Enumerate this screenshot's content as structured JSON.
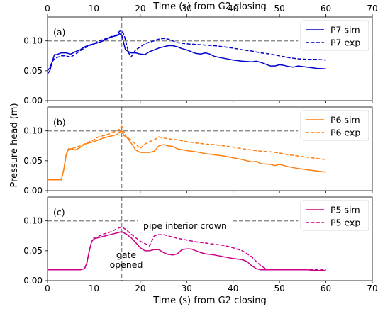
{
  "figure": {
    "top_xlabel": "Time (s) from G2 closing",
    "bottom_xlabel": "Time (s) from G2 closing",
    "ylabel": "Pressure head (m)"
  },
  "chart_data": [
    {
      "type": "line",
      "panel_label": "(a)",
      "xlim": [
        0,
        70
      ],
      "ylim": [
        0,
        0.14
      ],
      "xticks": [
        "0",
        "10",
        "20",
        "30",
        "40",
        "50",
        "60",
        "70"
      ],
      "yticks": [
        "0.00",
        "0.05",
        "0.10"
      ],
      "ytick_values": [
        0,
        0.05,
        0.1
      ],
      "ref_y": 0.1,
      "ref_x": 16,
      "legend_position": "upper right",
      "series": [
        {
          "name": "P7 sim",
          "color": "#0000cc",
          "style": "solid",
          "x": [
            0,
            0.5,
            1,
            1.5,
            2,
            3,
            4,
            5,
            6,
            7,
            8,
            9,
            10,
            11,
            12,
            13,
            14,
            15,
            15.5,
            16,
            16.4,
            16.8,
            17.5,
            18,
            19,
            20,
            21,
            22,
            23,
            24,
            25,
            26,
            27,
            28,
            29,
            30,
            31,
            32,
            33,
            34,
            35,
            36,
            38,
            40,
            42,
            44,
            45,
            46,
            47,
            48,
            49,
            50,
            51,
            52,
            53,
            54,
            56,
            58,
            60
          ],
          "y": [
            0.045,
            0.05,
            0.065,
            0.077,
            0.077,
            0.08,
            0.08,
            0.078,
            0.082,
            0.085,
            0.09,
            0.093,
            0.095,
            0.097,
            0.1,
            0.104,
            0.107,
            0.109,
            0.112,
            0.11,
            0.097,
            0.085,
            0.082,
            0.08,
            0.08,
            0.078,
            0.077,
            0.082,
            0.085,
            0.088,
            0.09,
            0.092,
            0.092,
            0.09,
            0.087,
            0.085,
            0.082,
            0.079,
            0.078,
            0.08,
            0.078,
            0.074,
            0.071,
            0.068,
            0.066,
            0.065,
            0.066,
            0.064,
            0.061,
            0.058,
            0.058,
            0.06,
            0.059,
            0.057,
            0.056,
            0.058,
            0.056,
            0.054,
            0.053
          ]
        },
        {
          "name": "P7 exp",
          "color": "#0000cc",
          "style": "dashed",
          "x": [
            0,
            0.5,
            1,
            1.5,
            2,
            3,
            4,
            5,
            6,
            7,
            8,
            9,
            10,
            11,
            12,
            13,
            14,
            15,
            15.5,
            16,
            16.5,
            17,
            17.5,
            18,
            19,
            20,
            21,
            22,
            23,
            24,
            25,
            26,
            27,
            28,
            30,
            32,
            34,
            36,
            38,
            40,
            42,
            44,
            46,
            48,
            50,
            52,
            54,
            56,
            58,
            60
          ],
          "y": [
            0.05,
            0.055,
            0.065,
            0.07,
            0.072,
            0.075,
            0.075,
            0.073,
            0.078,
            0.083,
            0.088,
            0.092,
            0.095,
            0.1,
            0.102,
            0.105,
            0.108,
            0.11,
            0.116,
            0.117,
            0.11,
            0.095,
            0.08,
            0.073,
            0.085,
            0.09,
            0.095,
            0.098,
            0.1,
            0.103,
            0.104,
            0.103,
            0.1,
            0.097,
            0.095,
            0.094,
            0.093,
            0.092,
            0.09,
            0.088,
            0.085,
            0.083,
            0.08,
            0.078,
            0.075,
            0.072,
            0.07,
            0.069,
            0.069,
            0.068
          ]
        }
      ]
    },
    {
      "type": "line",
      "panel_label": "(b)",
      "xlim": [
        0,
        70
      ],
      "ylim": [
        0,
        0.14
      ],
      "xticks": [
        "0",
        "10",
        "20",
        "30",
        "40",
        "50",
        "60",
        "70"
      ],
      "yticks": [
        "0.00",
        "0.05",
        "0.10"
      ],
      "ytick_values": [
        0,
        0.05,
        0.1
      ],
      "ref_y": 0.1,
      "ref_x": 16,
      "legend_position": "upper right",
      "series": [
        {
          "name": "P6 sim",
          "color": "#ff7f0e",
          "style": "solid",
          "x": [
            0,
            1,
            2,
            3,
            3.5,
            4,
            4.5,
            5,
            6,
            7,
            8,
            9,
            10,
            11,
            12,
            13,
            14,
            15,
            15.5,
            16,
            16.5,
            17,
            18,
            19,
            20,
            21,
            22,
            23,
            24,
            25,
            26,
            27,
            28,
            30,
            32,
            34,
            36,
            38,
            40,
            42,
            43,
            44,
            45,
            46,
            48,
            49,
            50,
            52,
            54,
            56,
            58,
            60
          ],
          "y": [
            0.018,
            0.018,
            0.018,
            0.018,
            0.035,
            0.06,
            0.07,
            0.07,
            0.068,
            0.072,
            0.078,
            0.08,
            0.082,
            0.085,
            0.088,
            0.09,
            0.092,
            0.094,
            0.098,
            0.1,
            0.092,
            0.09,
            0.08,
            0.068,
            0.064,
            0.064,
            0.064,
            0.066,
            0.075,
            0.077,
            0.075,
            0.074,
            0.07,
            0.067,
            0.065,
            0.062,
            0.06,
            0.058,
            0.055,
            0.052,
            0.05,
            0.048,
            0.049,
            0.045,
            0.044,
            0.042,
            0.044,
            0.04,
            0.037,
            0.035,
            0.033,
            0.031
          ]
        },
        {
          "name": "P6 exp",
          "color": "#ff7f0e",
          "style": "dashed",
          "x": [
            0,
            1,
            2,
            3,
            3.5,
            4,
            4.5,
            5,
            6,
            7,
            8,
            9,
            10,
            11,
            12,
            13,
            14,
            15,
            15.5,
            16,
            16.5,
            17,
            18,
            19,
            20,
            21,
            22,
            23,
            24,
            25,
            26,
            28,
            30,
            32,
            34,
            36,
            38,
            40,
            42,
            44,
            46,
            48,
            50,
            52,
            54,
            56,
            58,
            60
          ],
          "y": [
            0.018,
            0.018,
            0.018,
            0.02,
            0.035,
            0.058,
            0.068,
            0.07,
            0.072,
            0.075,
            0.078,
            0.082,
            0.085,
            0.09,
            0.092,
            0.094,
            0.097,
            0.1,
            0.103,
            0.108,
            0.098,
            0.09,
            0.085,
            0.078,
            0.071,
            0.078,
            0.082,
            0.085,
            0.09,
            0.088,
            0.087,
            0.085,
            0.082,
            0.08,
            0.078,
            0.077,
            0.075,
            0.073,
            0.07,
            0.068,
            0.066,
            0.065,
            0.063,
            0.06,
            0.058,
            0.056,
            0.054,
            0.052
          ]
        }
      ]
    },
    {
      "type": "line",
      "panel_label": "(c)",
      "xlim": [
        0,
        70
      ],
      "ylim": [
        0,
        0.14
      ],
      "xticks": [
        "0",
        "10",
        "20",
        "30",
        "40",
        "50",
        "60",
        "70"
      ],
      "yticks": [
        "0.00",
        "0.05",
        "0.10"
      ],
      "ytick_values": [
        0,
        0.05,
        0.1
      ],
      "ref_y": 0.1,
      "ref_x": 16,
      "legend_position": "upper right",
      "annotations": [
        "pipe interior crown",
        "gate",
        "opened"
      ],
      "series": [
        {
          "name": "P5 sim",
          "color": "#cc0088",
          "style": "solid",
          "x": [
            0,
            2,
            4,
            6,
            7,
            8,
            8.5,
            9,
            9.5,
            10,
            11,
            12,
            13,
            14,
            15,
            16,
            17,
            18,
            19,
            20,
            21,
            22,
            23,
            24,
            25,
            26,
            27,
            28,
            29,
            30,
            31,
            32,
            33,
            34,
            36,
            38,
            40,
            42,
            43,
            44,
            45,
            46,
            48,
            50,
            52,
            54,
            56,
            58,
            60
          ],
          "y": [
            0.018,
            0.018,
            0.018,
            0.018,
            0.018,
            0.02,
            0.03,
            0.05,
            0.065,
            0.07,
            0.072,
            0.074,
            0.076,
            0.078,
            0.08,
            0.082,
            0.078,
            0.072,
            0.064,
            0.055,
            0.05,
            0.05,
            0.052,
            0.052,
            0.047,
            0.044,
            0.043,
            0.045,
            0.052,
            0.053,
            0.053,
            0.05,
            0.047,
            0.045,
            0.043,
            0.04,
            0.037,
            0.035,
            0.032,
            0.025,
            0.02,
            0.018,
            0.018,
            0.018,
            0.018,
            0.018,
            0.018,
            0.017,
            0.017
          ]
        },
        {
          "name": "P5 exp",
          "color": "#cc0088",
          "style": "dashed",
          "x": [
            0,
            2,
            4,
            6,
            7,
            8,
            8.5,
            9,
            9.5,
            10,
            11,
            12,
            13,
            14,
            15,
            16,
            17,
            18,
            19,
            20,
            21,
            22,
            23,
            24,
            25,
            26,
            27,
            28,
            30,
            32,
            34,
            36,
            38,
            40,
            42,
            43,
            44,
            45,
            46,
            47,
            48,
            50,
            52,
            54,
            56,
            58,
            60
          ],
          "y": [
            0.018,
            0.018,
            0.018,
            0.018,
            0.018,
            0.02,
            0.03,
            0.05,
            0.065,
            0.072,
            0.074,
            0.078,
            0.08,
            0.083,
            0.087,
            0.09,
            0.085,
            0.078,
            0.072,
            0.066,
            0.062,
            0.058,
            0.075,
            0.077,
            0.077,
            0.075,
            0.073,
            0.071,
            0.068,
            0.065,
            0.063,
            0.061,
            0.059,
            0.055,
            0.05,
            0.045,
            0.04,
            0.032,
            0.025,
            0.02,
            0.018,
            0.018,
            0.018,
            0.018,
            0.018,
            0.018,
            0.018
          ]
        }
      ]
    }
  ]
}
